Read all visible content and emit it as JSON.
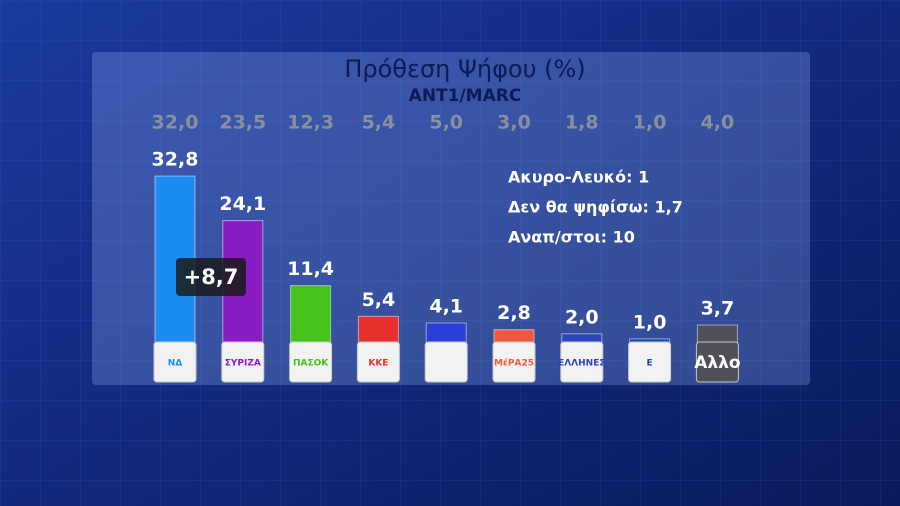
{
  "chart_data": {
    "type": "bar",
    "title": "Πρόθεση Ψήφου (%)",
    "subtitle": "ANT1/MARC",
    "categories": [
      "ΝΔ",
      "ΣΥΡΙΖΑ",
      "ΠΑΣΟΚ",
      "ΚΚΕ",
      null,
      "ΜέΡΑ25",
      "ΕΛΛΗΝΕΣ",
      "Ε",
      "Αλλο"
    ],
    "values": [
      32.8,
      24.1,
      11.4,
      5.4,
      4.1,
      2.8,
      2.0,
      1.0,
      3.7
    ],
    "value_labels": [
      "32,8",
      "24,1",
      "11,4",
      "5,4",
      "4,1",
      "2,8",
      "2,0",
      "1,0",
      "3,7"
    ],
    "previous_values": [
      32.0,
      23.5,
      12.3,
      5.4,
      5.0,
      3.0,
      1.8,
      1.0,
      4.0
    ],
    "previous_value_labels": [
      "32,0",
      "23,5",
      "12,3",
      "5,4",
      "5,0",
      "3,0",
      "1,8",
      "1,0",
      "4,0"
    ],
    "colors": [
      "#1c8cf0",
      "#8a1cc4",
      "#45c21c",
      "#e8302c",
      "#2c3ed8",
      "#f0583c",
      "#2a44c0",
      "#1a4aa8",
      "#505058"
    ],
    "difference": {
      "value": 8.7,
      "label": "+8,7"
    },
    "notes": [
      "Ακυρο-Λευκό: 1",
      "Δεν θα ψηφίσω: 1,7",
      "Αναπ/στοι: 10"
    ]
  }
}
